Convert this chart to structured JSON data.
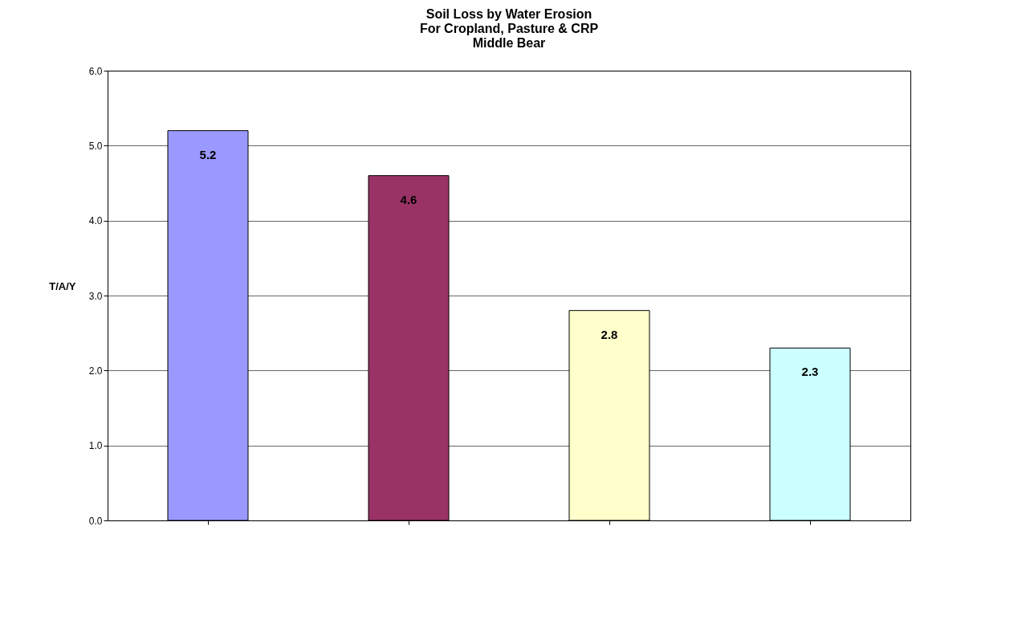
{
  "chart_data": {
    "type": "bar",
    "title": "Soil Loss by Water Erosion\nFor Cropland, Pasture & CRP\nMiddle Bear",
    "ylabel": "T/A/Y",
    "categories": [
      null,
      null,
      null,
      null
    ],
    "values": [
      5.2,
      4.6,
      2.8,
      2.3
    ],
    "colors": [
      "#9999ff",
      "#993366",
      "#ffffcc",
      "#ccffff"
    ],
    "ylim": [
      0,
      6
    ],
    "yticks": [
      {
        "value": 0,
        "label": "0.0"
      },
      {
        "value": 1,
        "label": "1.0"
      },
      {
        "value": 2,
        "label": "2.0"
      },
      {
        "value": 3,
        "label": "3.0"
      },
      {
        "value": 4,
        "label": "4.0"
      },
      {
        "value": 5,
        "label": "5.0"
      },
      {
        "value": 6,
        "label": "6.0"
      }
    ],
    "grid": "y",
    "data_labels": true
  }
}
